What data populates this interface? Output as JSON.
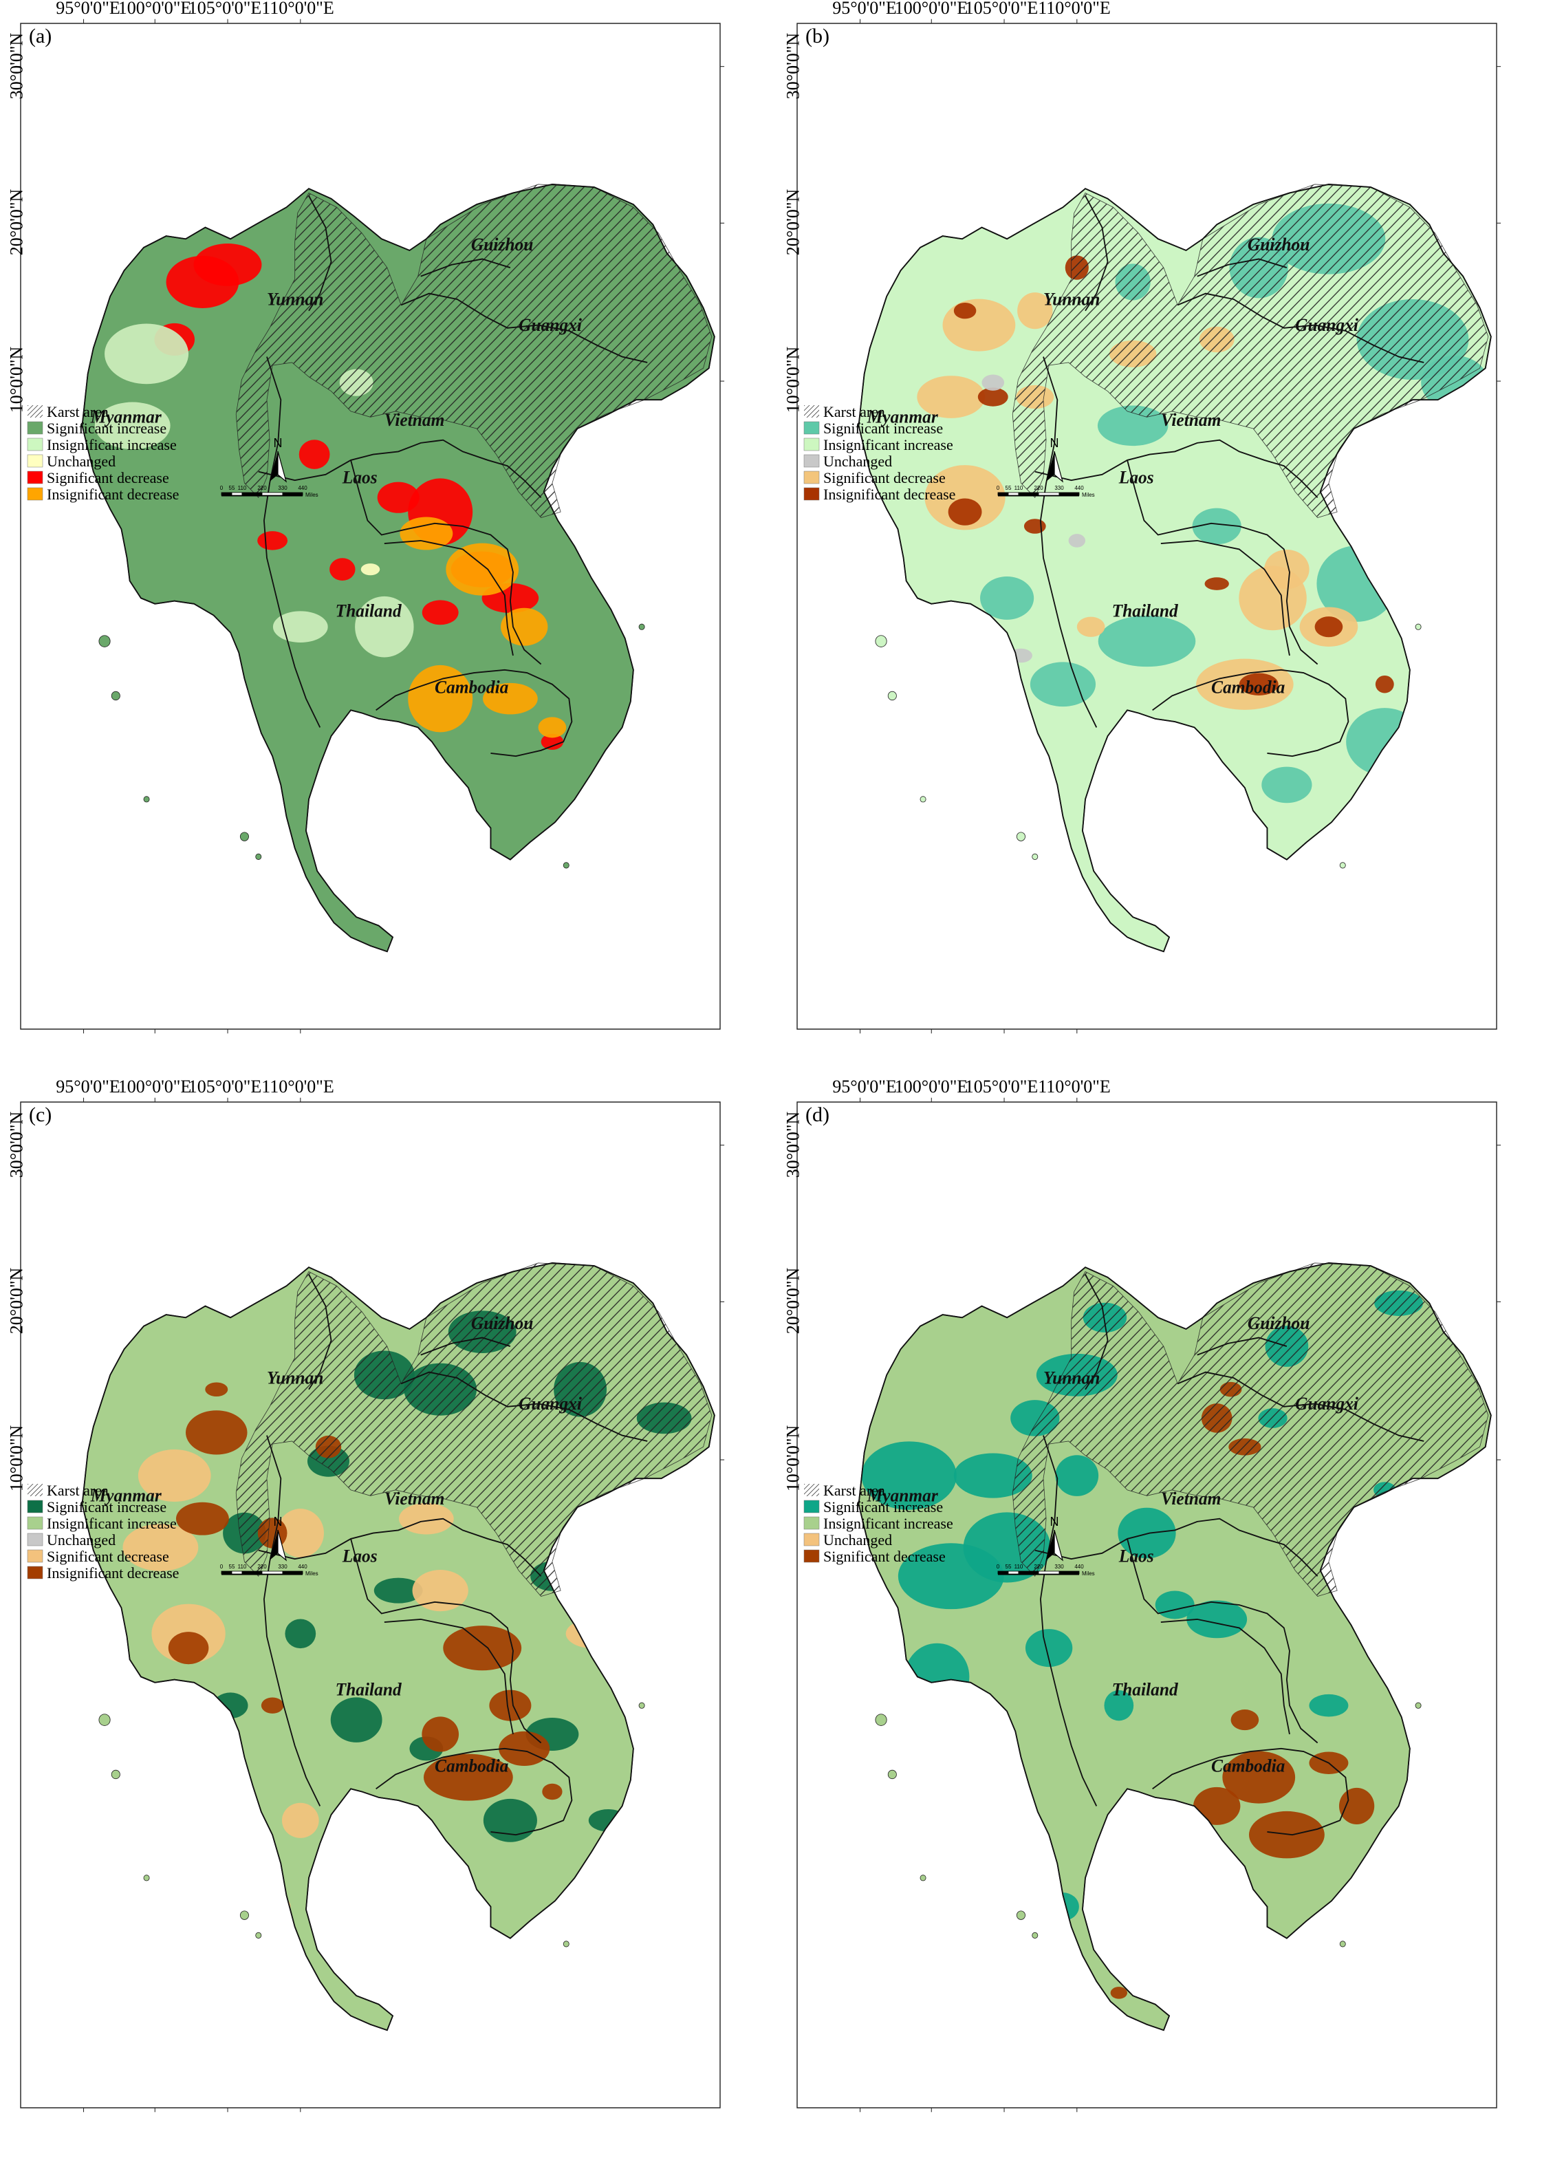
{
  "coords": {
    "lon": [
      "95°0'0\"E",
      "100°0'0\"E",
      "105°0'0\"E",
      "110°0'0\"E"
    ],
    "lat": [
      "30°0'0\"N",
      "20°0'0\"N",
      "10°0'0\"N"
    ]
  },
  "regions": [
    "Guizhou",
    "Yunnan",
    "Guangxi",
    "Myanmar",
    "Vietnam",
    "Laos",
    "Thailand",
    "Cambodia"
  ],
  "north_label": "N",
  "scale": {
    "ticks": [
      "0",
      "55",
      "110",
      "220",
      "330",
      "440"
    ],
    "unit": "Miles"
  },
  "panels": [
    {
      "id": "a",
      "tag": "(a)",
      "colors": {
        "base": "#6aa86a",
        "dec_sig": "#ff0000",
        "dec_insig": "#ffa500",
        "inc_insig": "#cdeebc",
        "pale": "#ffffc0"
      },
      "legend": [
        {
          "label": "Karst area",
          "swatch": "hatch"
        },
        {
          "label": "Significant increase",
          "swatch": "#6aa86a"
        },
        {
          "label": "Insignificant increase",
          "swatch": "#cdf7c0"
        },
        {
          "label": "Unchanged",
          "swatch": "#ffffc0"
        },
        {
          "label": "Significant decrease",
          "swatch": "#ff0000"
        },
        {
          "label": "Insignificant decrease",
          "swatch": "#ffa500"
        }
      ]
    },
    {
      "id": "b",
      "tag": "(b)",
      "colors": {
        "base": "#cdf5c4",
        "sig_inc": "#5ec9a8",
        "dec_sig": "#f3c57c",
        "dec_insig": "#a83300",
        "grey": "#c8c8c8"
      },
      "legend": [
        {
          "label": "Karst area",
          "swatch": "hatch"
        },
        {
          "label": "Significant increase",
          "swatch": "#5ec9a8"
        },
        {
          "label": "Insignificant increase",
          "swatch": "#cdf7c0"
        },
        {
          "label": "Unchanged",
          "swatch": "#c8c8c8"
        },
        {
          "label": "Significant decrease",
          "swatch": "#f3c57c"
        },
        {
          "label": "Insignificant decrease",
          "swatch": "#a83300"
        }
      ]
    },
    {
      "id": "c",
      "tag": "(c)",
      "colors": {
        "base": "#a8d08d",
        "sig_inc": "#0e7047",
        "dec_sig": "#f3c27d",
        "dec_insig": "#a33d00"
      },
      "legend": [
        {
          "label": "Karst area",
          "swatch": "hatch"
        },
        {
          "label": "Significant increase",
          "swatch": "#0e7047"
        },
        {
          "label": "Insignificant increase",
          "swatch": "#a8d08d"
        },
        {
          "label": "Unchanged",
          "swatch": "#c8c8c8"
        },
        {
          "label": "Significant decrease",
          "swatch": "#f3c27d"
        },
        {
          "label": "Insignificant decrease",
          "swatch": "#a33d00"
        }
      ]
    },
    {
      "id": "d",
      "tag": "(d)",
      "colors": {
        "base": "#a8d08d",
        "sig_inc": "#0ea688",
        "dec_sig": "#a33d00"
      },
      "legend": [
        {
          "label": "Karst area",
          "swatch": "hatch"
        },
        {
          "label": "Significant increase",
          "swatch": "#0ea688"
        },
        {
          "label": "Insignificant increase",
          "swatch": "#a8d08d"
        },
        {
          "label": "Unchanged",
          "swatch": "#f3c27d"
        },
        {
          "label": "Significant decrease",
          "swatch": "#a33d00"
        }
      ]
    }
  ]
}
